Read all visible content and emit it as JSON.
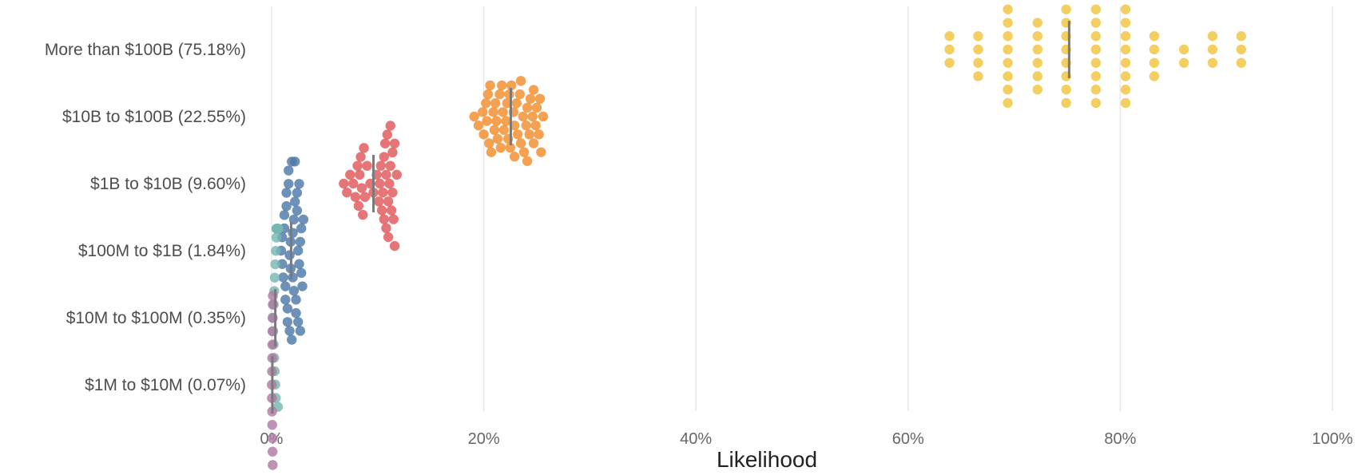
{
  "chart_data": {
    "type": "scatter",
    "subtype": "beeswarm-strip",
    "title": "",
    "xlabel": "Likelihood",
    "ylabel": "",
    "xlim": [
      0,
      100
    ],
    "x_unit": "percent",
    "x_ticks": [
      0,
      20,
      40,
      60,
      80,
      100
    ],
    "x_tick_labels": [
      "0%",
      "20%",
      "40%",
      "60%",
      "80%",
      "100%"
    ],
    "grid": true,
    "legend": "none",
    "categories": [
      "More than $100B (75.18%)",
      "$10B to $100B (22.55%)",
      "$1B to $10B (9.60%)",
      "$100M to $1B (1.84%)",
      "$10M to $100M (0.35%)",
      "$1M to $10M (0.07%)"
    ],
    "series": [
      {
        "category": "More than $100B (75.18%)",
        "color": "#f0c53f",
        "median": 75.18,
        "points": [
          63.9,
          63.9,
          63.9,
          66.6,
          66.6,
          66.6,
          66.6,
          69.4,
          69.4,
          69.4,
          69.4,
          69.4,
          69.4,
          69.4,
          69.4,
          72.2,
          72.2,
          72.2,
          72.2,
          72.2,
          72.2,
          74.9,
          74.9,
          74.9,
          74.9,
          74.9,
          74.9,
          74.9,
          74.9,
          77.7,
          77.7,
          77.7,
          77.7,
          77.7,
          77.7,
          77.7,
          77.7,
          80.5,
          80.5,
          80.5,
          80.5,
          80.5,
          80.5,
          80.5,
          80.5,
          83.2,
          83.2,
          83.2,
          83.2,
          86.0,
          86.0,
          88.7,
          88.7,
          88.7,
          91.4,
          91.4,
          91.4
        ]
      },
      {
        "category": "$10B to $100B (22.55%)",
        "color": "#f28e2b",
        "median": 22.55,
        "points": [
          19.1,
          19.5,
          19.9,
          20.2,
          20.3,
          20.4,
          20.6,
          20.7,
          20.9,
          21.0,
          21.2,
          21.3,
          21.5,
          21.6,
          21.8,
          21.9,
          22.1,
          22.2,
          22.4,
          22.5,
          22.6,
          22.8,
          22.9,
          23.1,
          23.2,
          23.4,
          23.5,
          23.7,
          23.8,
          24.0,
          24.1,
          24.3,
          24.4,
          24.6,
          24.7,
          24.9,
          25.0,
          25.2,
          25.4,
          25.6,
          20.5,
          21.1,
          21.7,
          22.3,
          22.9,
          23.5,
          24.1,
          24.7,
          25.3,
          20.0
        ]
      },
      {
        "category": "$1B to $10B (9.60%)",
        "color": "#e15759",
        "median": 9.6,
        "points": [
          6.8,
          7.1,
          7.4,
          7.7,
          7.9,
          8.1,
          8.3,
          8.4,
          8.5,
          8.6,
          8.8,
          9.0,
          9.3,
          9.6,
          9.9,
          10.1,
          10.3,
          10.5,
          10.6,
          10.7,
          10.8,
          10.9,
          11.0,
          11.1,
          11.2,
          11.3,
          11.4,
          11.5,
          11.6,
          11.8,
          10.4,
          10.8,
          11.2,
          11.6,
          8.2,
          8.7,
          10.2,
          10.6,
          11.0,
          11.4
        ]
      },
      {
        "category": "$100M to $1B (1.84%)",
        "color": "#4e79a7",
        "median": 1.84,
        "points": [
          0.9,
          1.0,
          1.1,
          1.2,
          1.3,
          1.4,
          1.5,
          1.6,
          1.7,
          1.8,
          1.9,
          2.0,
          2.1,
          2.2,
          2.3,
          2.4,
          2.5,
          2.6,
          2.7,
          2.8,
          2.9,
          3.0,
          1.2,
          1.5,
          1.8,
          2.1,
          2.4,
          2.7,
          1.0,
          1.3,
          1.6,
          1.9,
          2.2,
          2.5,
          2.8,
          1.4,
          1.7,
          2.0,
          2.3,
          2.6
        ]
      },
      {
        "category": "$10M to $100M (0.35%)",
        "color": "#76b7b2",
        "median": 0.35,
        "points": [
          0.1,
          0.15,
          0.2,
          0.25,
          0.3,
          0.35,
          0.4,
          0.45,
          0.5,
          0.55,
          0.6,
          0.65,
          0.2,
          0.3,
          0.4,
          0.5,
          0.25,
          0.35,
          0.45,
          0.55
        ]
      },
      {
        "category": "$1M to $10M (0.07%)",
        "color": "#b07aa1",
        "median": 0.07,
        "points": [
          0.02,
          0.04,
          0.06,
          0.08,
          0.1,
          0.12,
          0.05,
          0.07,
          0.09,
          0.11,
          0.03,
          0.06,
          0.08,
          0.1
        ]
      }
    ]
  }
}
